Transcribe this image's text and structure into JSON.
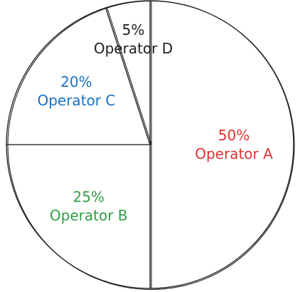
{
  "chart_data": {
    "type": "pie",
    "start_angle_deg": 0,
    "direction": "clockwise",
    "slices": [
      {
        "name": "Operator A",
        "value": 50,
        "percent_label": "50%",
        "color": "#e03131"
      },
      {
        "name": "Operator B",
        "value": 25,
        "percent_label": "25%",
        "color": "#2f9e44"
      },
      {
        "name": "Operator C",
        "value": 20,
        "percent_label": "20%",
        "color": "#1971c2"
      },
      {
        "name": "Operator D",
        "value": 5,
        "percent_label": "5%",
        "color": "#1e1e1e"
      }
    ]
  }
}
